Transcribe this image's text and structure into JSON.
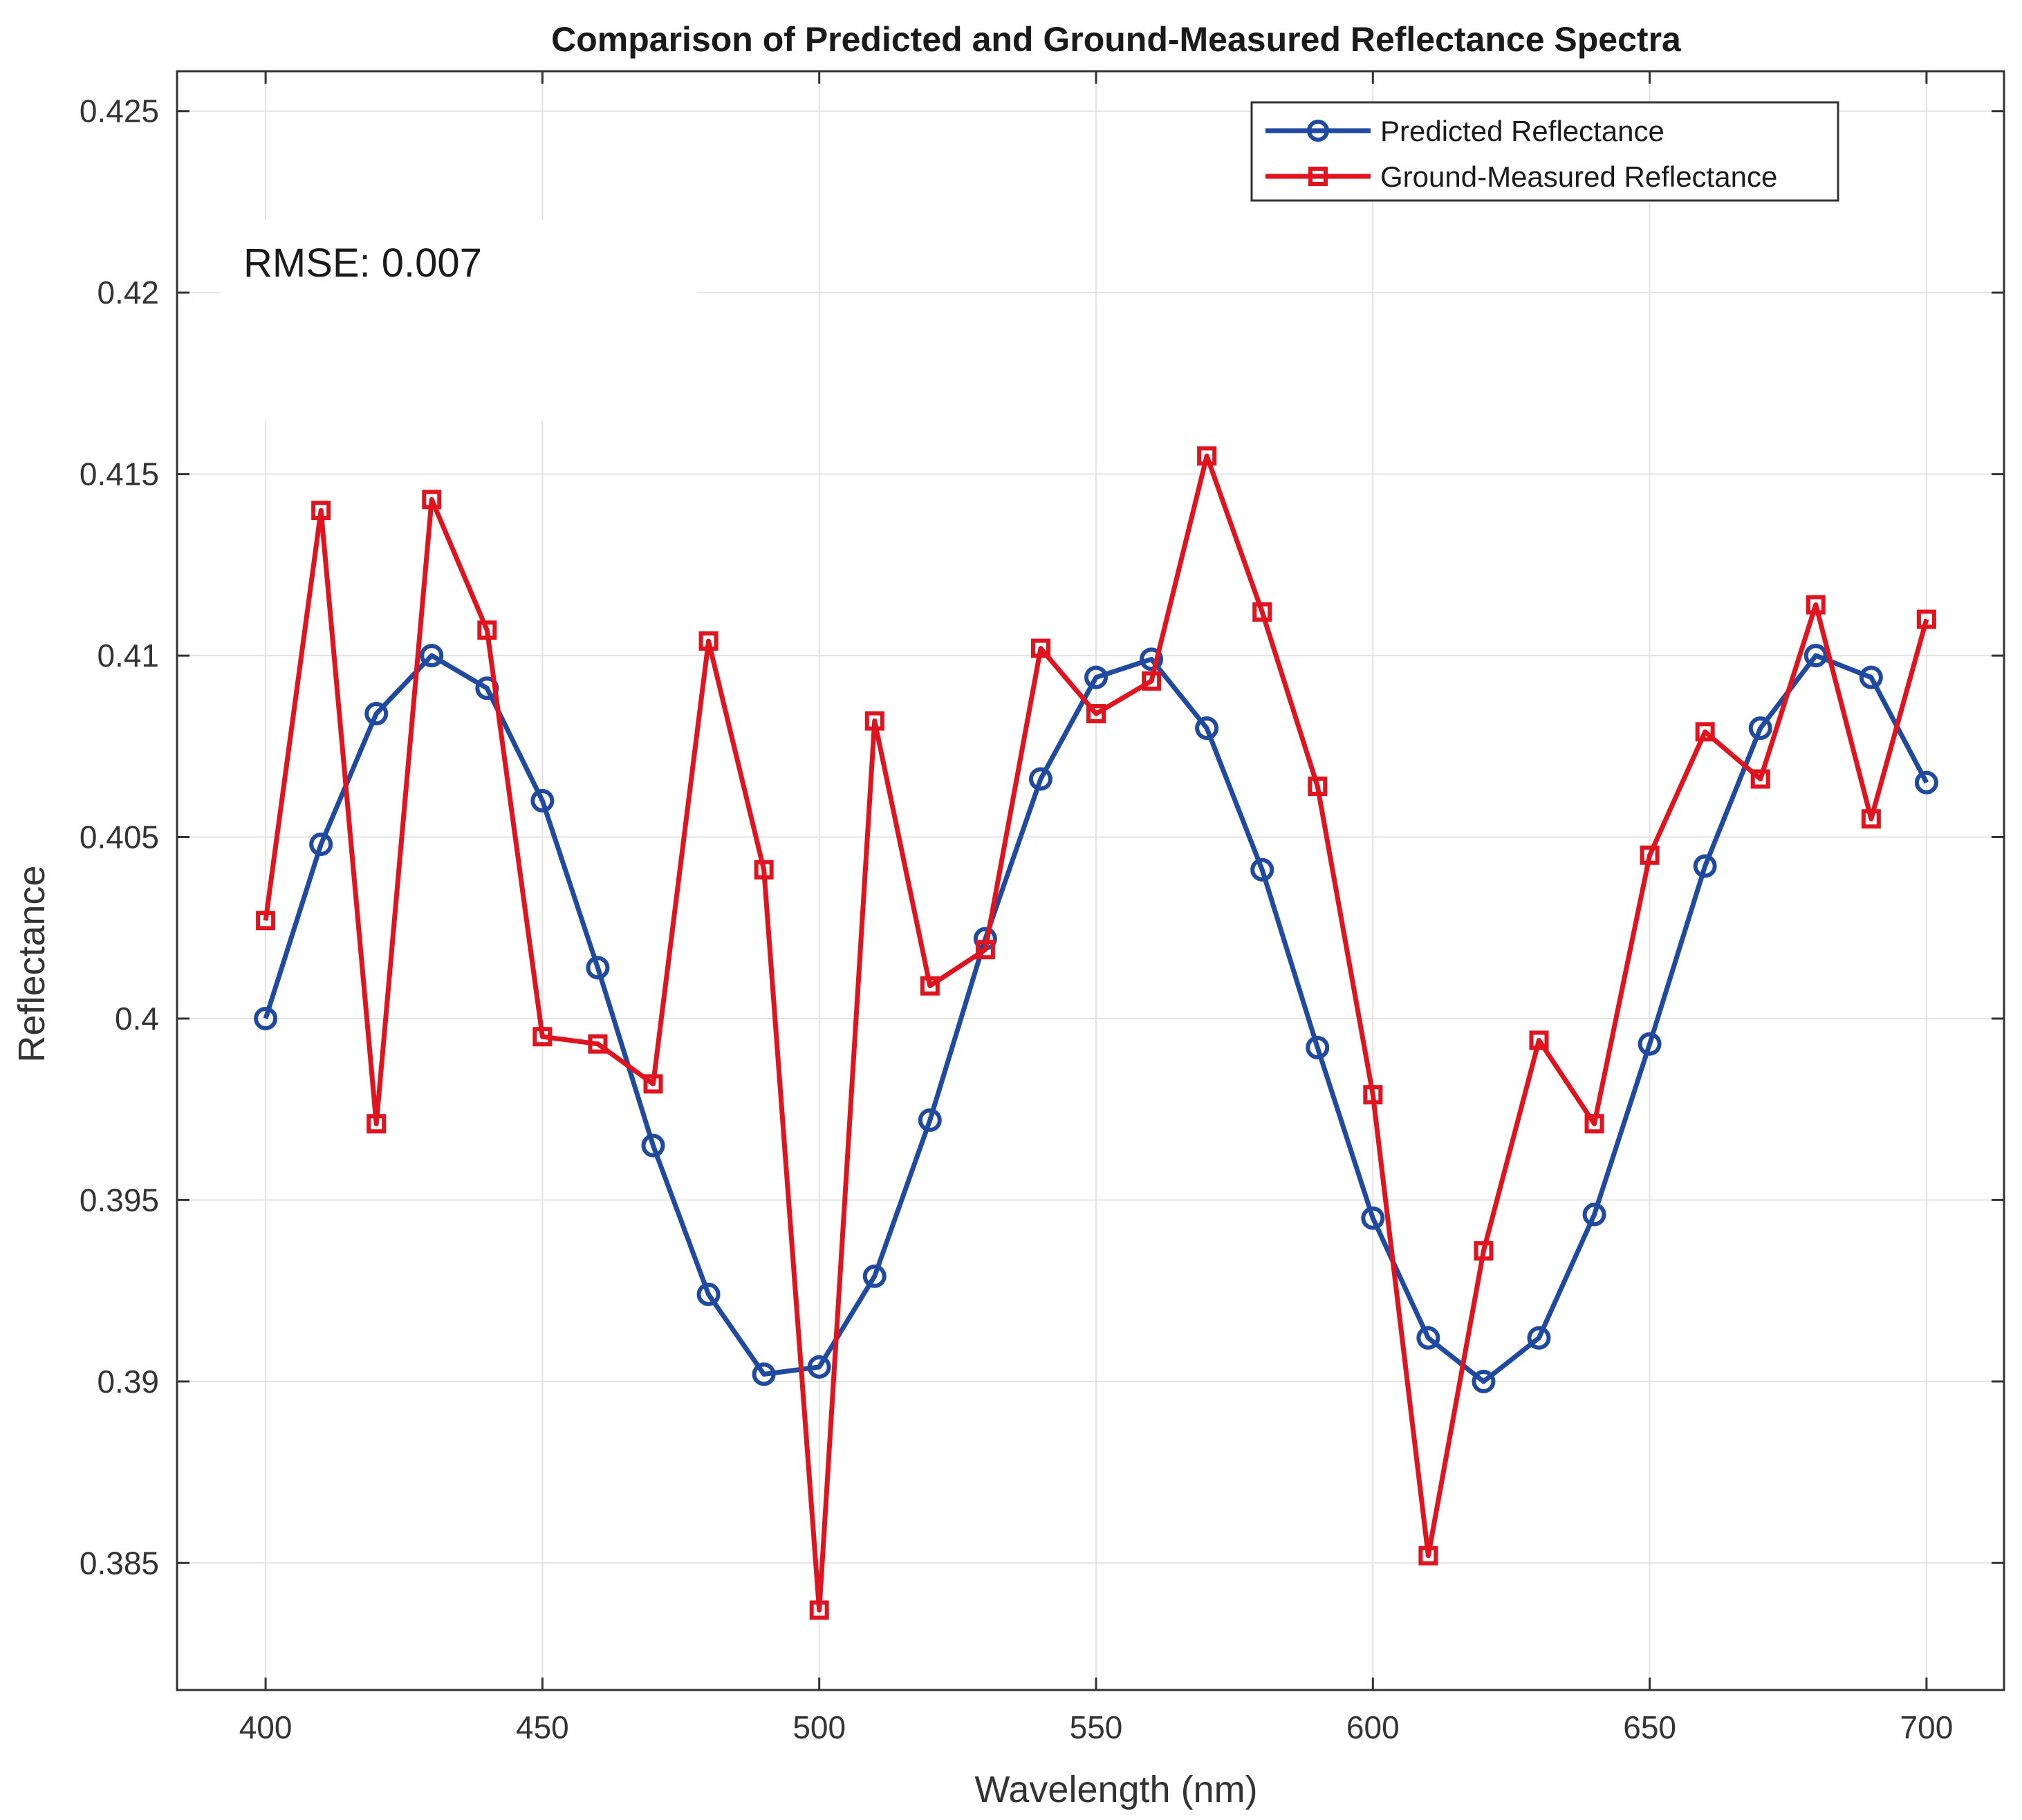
{
  "chart_data": {
    "type": "line",
    "title": "Comparison of Predicted and Ground-Measured Reflectance Spectra",
    "xlabel": "Wavelength (nm)",
    "ylabel": "Reflectance",
    "xlim": [
      384,
      714
    ],
    "ylim": [
      0.3815,
      0.4261
    ],
    "xticks": [
      400,
      450,
      500,
      550,
      600,
      650,
      700
    ],
    "xtick_labels": [
      "400",
      "450",
      "500",
      "550",
      "600",
      "650",
      "700"
    ],
    "yticks": [
      0.385,
      0.39,
      0.395,
      0.4,
      0.405,
      0.41,
      0.415,
      0.42,
      0.425
    ],
    "ytick_labels": [
      "0.385",
      "0.39",
      "0.395",
      "0.4",
      "0.405",
      "0.41",
      "0.415",
      "0.42",
      "0.425"
    ],
    "grid": true,
    "legend_location": "top-right",
    "x": [
      400,
      410,
      420,
      430,
      440,
      450,
      460,
      470,
      480,
      490,
      500,
      510,
      520,
      530,
      540,
      550,
      560,
      570,
      580,
      590,
      600,
      610,
      620,
      630,
      640,
      650,
      660,
      670,
      680,
      690,
      700
    ],
    "series": [
      {
        "name": "Predicted Reflectance",
        "color": "#1f4aa0",
        "marker": "circle",
        "values": [
          0.4,
          0.4048,
          0.4084,
          0.41,
          0.4091,
          0.406,
          0.4014,
          0.3965,
          0.3924,
          0.3902,
          0.3904,
          0.3929,
          0.3972,
          0.4022,
          0.4066,
          0.4094,
          0.4099,
          0.408,
          0.4041,
          0.3992,
          0.3945,
          0.3912,
          0.39,
          0.3912,
          0.3946,
          0.3993,
          0.4042,
          0.408,
          0.41,
          0.4094,
          0.4065
        ]
      },
      {
        "name": "Ground-Measured Reflectance",
        "color": "#e0141e",
        "marker": "square",
        "values": [
          0.4027,
          0.414,
          0.3971,
          0.4143,
          0.4107,
          0.3995,
          0.3993,
          0.3982,
          0.4104,
          0.4041,
          0.3837,
          0.4082,
          0.4009,
          0.4019,
          0.4102,
          0.4084,
          0.4093,
          0.4155,
          0.4112,
          0.4064,
          0.3979,
          0.3852,
          0.3936,
          0.3994,
          0.3971,
          0.4045,
          0.4079,
          0.4066,
          0.4114,
          0.4055,
          0.411
        ]
      }
    ],
    "annotations": [
      "RMSE: 0.007"
    ]
  }
}
